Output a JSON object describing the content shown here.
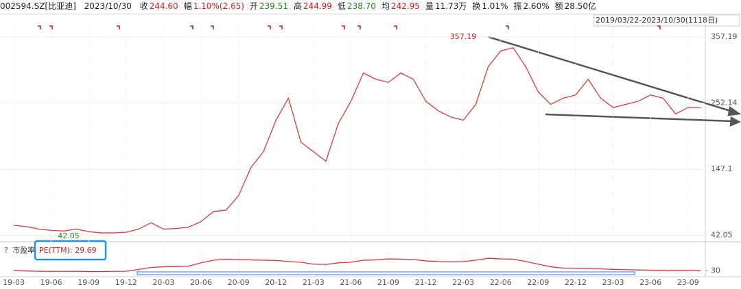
{
  "header": {
    "code": "002594.SZ[比亚迪]",
    "date": "2023/10/30",
    "items": [
      {
        "label": "收",
        "value": "244.60",
        "color": "#d01a1a"
      },
      {
        "label": "幅",
        "value": "1.10%(2.65)",
        "color": "#d01a1a"
      },
      {
        "label": "开",
        "value": "239.51",
        "color": "#1a8a1a"
      },
      {
        "label": "高",
        "value": "244.99",
        "color": "#d01a1a"
      },
      {
        "label": "低",
        "value": "238.70",
        "color": "#1a8a1a"
      },
      {
        "label": "均",
        "value": "242.95",
        "color": "#d01a1a"
      },
      {
        "label": "量",
        "value": "11.73万",
        "color": "#222"
      },
      {
        "label": "换",
        "value": "1.01%",
        "color": "#222"
      },
      {
        "label": "振",
        "value": "2.60%",
        "color": "#222"
      },
      {
        "label": "额",
        "value": "28.50亿",
        "color": "#222"
      }
    ]
  },
  "range": "2019/03/22-2023/10/30(1118日)",
  "chart_data": [
    {
      "type": "line",
      "categories": [
        "19-03",
        null,
        null,
        "19-06",
        null,
        null,
        "19-09",
        null,
        null,
        "19-12",
        null,
        null,
        "20-03",
        null,
        null,
        "20-06",
        null,
        null,
        "20-09",
        null,
        null,
        "20-12",
        null,
        null,
        "21-03",
        null,
        null,
        "21-06",
        null,
        null,
        "21-09",
        null,
        null,
        "21-12",
        null,
        null,
        "22-03",
        null,
        null,
        "22-06",
        null,
        null,
        "22-09",
        null,
        null,
        "22-12",
        null,
        null,
        "23-03",
        null,
        null,
        "23-06",
        null,
        null,
        "23-09",
        null
      ],
      "values": [
        58,
        56,
        52,
        50,
        49,
        52,
        48,
        46,
        46,
        47,
        52,
        62,
        52,
        53,
        55,
        64,
        80,
        82,
        105,
        150,
        175,
        225,
        260,
        190,
        175,
        160,
        220,
        255,
        300,
        290,
        285,
        300,
        290,
        255,
        240,
        230,
        225,
        250,
        310,
        335,
        340,
        310,
        270,
        250,
        260,
        265,
        290,
        260,
        245,
        250,
        255,
        265,
        260,
        235,
        245,
        244.6
      ],
      "color": "#d83b3b",
      "ylim": [
        33,
        380
      ],
      "yticks": [
        42.05,
        147.1,
        252.14,
        357.19
      ],
      "grid": true,
      "annotations": [
        "357.19",
        "42.05"
      ]
    },
    {
      "type": "line",
      "title": "市盈率",
      "label": "PE(TTM): 29.69",
      "values": [
        30,
        28,
        26,
        25,
        25,
        26,
        24,
        24,
        25,
        26,
        40,
        55,
        60,
        62,
        65,
        90,
        110,
        118,
        115,
        112,
        110,
        108,
        100,
        95,
        80,
        78,
        90,
        95,
        110,
        112,
        120,
        118,
        115,
        105,
        100,
        98,
        100,
        110,
        125,
        120,
        118,
        100,
        80,
        60,
        50,
        48,
        46,
        44,
        40,
        38,
        36,
        34,
        32,
        30,
        30,
        29.69
      ],
      "color": "#e0303a",
      "ylim": [
        -10,
        240
      ],
      "yticks": [
        30
      ]
    }
  ]
}
